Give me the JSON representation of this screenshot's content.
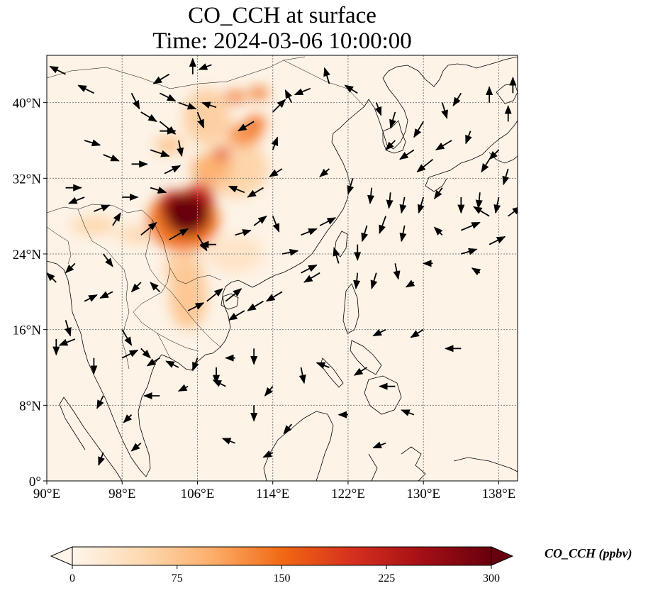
{
  "title": {
    "line1": "CO_CCH at surface",
    "line2": "Time: 2024-03-06 10:00:00"
  },
  "map": {
    "lon_range": [
      90,
      140
    ],
    "lat_range": [
      0,
      45
    ],
    "gridlines": true,
    "lon_ticks": [
      {
        "value": 90,
        "label": "90°E"
      },
      {
        "value": 98,
        "label": "98°E"
      },
      {
        "value": 106,
        "label": "106°E"
      },
      {
        "value": 114,
        "label": "114°E"
      },
      {
        "value": 122,
        "label": "122°E"
      },
      {
        "value": 130,
        "label": "130°E"
      },
      {
        "value": 138,
        "label": "138°E"
      }
    ],
    "lat_ticks": [
      {
        "value": 0,
        "label": "0°"
      },
      {
        "value": 8,
        "label": "8°N"
      },
      {
        "value": 16,
        "label": "16°N"
      },
      {
        "value": 24,
        "label": "24°N"
      },
      {
        "value": 32,
        "label": "32°N"
      },
      {
        "value": 40,
        "label": "40°N"
      }
    ]
  },
  "colorbar": {
    "label": "CO_CCH (ppbv)",
    "min": 0,
    "max": 300,
    "extend": "both",
    "colors": [
      "#fff5eb",
      "#fdd9b1",
      "#fdae6b",
      "#f16913",
      "#d7301f",
      "#a50f15",
      "#67000d"
    ],
    "ticks": [
      {
        "value": 0,
        "label": "0"
      },
      {
        "value": 75,
        "label": "75"
      },
      {
        "value": 150,
        "label": "150"
      },
      {
        "value": 225,
        "label": "225"
      },
      {
        "value": 300,
        "label": "300"
      }
    ]
  },
  "field": {
    "background_color": "#fdf3e7",
    "plumes": [
      {
        "lon": 104.9,
        "lat": 28.2,
        "rlon": 2.4,
        "rlat": 2.2,
        "value": 300
      },
      {
        "lon": 103.5,
        "lat": 29.2,
        "rlon": 1.6,
        "rlat": 1.4,
        "value": 230
      },
      {
        "lon": 106.3,
        "lat": 30.0,
        "rlon": 1.5,
        "rlat": 1.5,
        "value": 210
      },
      {
        "lon": 104.5,
        "lat": 27.5,
        "rlon": 3.8,
        "rlat": 3.2,
        "value": 140
      },
      {
        "lon": 107.5,
        "lat": 33.0,
        "rlon": 2.2,
        "rlat": 1.6,
        "value": 95
      },
      {
        "lon": 108.6,
        "lat": 34.6,
        "rlon": 0.9,
        "rlat": 0.6,
        "value": 190
      },
      {
        "lon": 111.0,
        "lat": 36.6,
        "rlon": 1.8,
        "rlat": 1.2,
        "value": 120
      },
      {
        "lon": 112.2,
        "lat": 37.8,
        "rlon": 1.0,
        "rlat": 0.8,
        "value": 150
      },
      {
        "lon": 110.0,
        "lat": 40.6,
        "rlon": 1.2,
        "rlat": 0.6,
        "value": 140
      },
      {
        "lon": 112.5,
        "lat": 41.0,
        "rlon": 1.0,
        "rlat": 0.6,
        "value": 150
      },
      {
        "lon": 107.0,
        "lat": 38.5,
        "rlon": 2.5,
        "rlat": 3.0,
        "value": 60
      },
      {
        "lon": 110.0,
        "lat": 33.0,
        "rlon": 3.5,
        "rlat": 3.0,
        "value": 55
      },
      {
        "lon": 103.0,
        "lat": 35.5,
        "rlon": 1.5,
        "rlat": 1.0,
        "value": 70
      },
      {
        "lon": 105.0,
        "lat": 19.5,
        "rlon": 2.0,
        "rlat": 3.5,
        "value": 70
      },
      {
        "lon": 104.5,
        "lat": 22.5,
        "rlon": 2.0,
        "rlat": 2.0,
        "value": 60
      },
      {
        "lon": 95.0,
        "lat": 27.0,
        "rlon": 2.5,
        "rlat": 1.0,
        "value": 50
      },
      {
        "lon": 99.5,
        "lat": 26.0,
        "rlon": 2.0,
        "rlat": 1.0,
        "value": 45
      },
      {
        "lon": 110.0,
        "lat": 24.0,
        "rlon": 3.0,
        "rlat": 2.0,
        "value": 30
      }
    ]
  },
  "wind": {
    "vectors": [
      [
        92,
        43,
        -1,
        0.5
      ],
      [
        95,
        41,
        -1,
        0.5
      ],
      [
        99,
        41,
        0.5,
        -1
      ],
      [
        103,
        43,
        -1,
        -0.6
      ],
      [
        105.5,
        43,
        0,
        1
      ],
      [
        107.5,
        44,
        -0.8,
        -0.3
      ],
      [
        102,
        41,
        1,
        -0.5
      ],
      [
        104,
        40,
        1.1,
        -0.4
      ],
      [
        108,
        39.5,
        -0.9,
        0.3
      ],
      [
        100,
        39,
        1,
        -0.6
      ],
      [
        102,
        38,
        1,
        -0.8
      ],
      [
        106,
        39,
        0.4,
        -1
      ],
      [
        94,
        36,
        1,
        -0.3
      ],
      [
        96,
        34.5,
        1,
        -0.4
      ],
      [
        99,
        33.5,
        1,
        0
      ],
      [
        101,
        35,
        1.2,
        -0.4
      ],
      [
        102,
        37,
        1,
        0
      ],
      [
        104,
        36,
        0.2,
        -1
      ],
      [
        92,
        31,
        1,
        0
      ],
      [
        94,
        30,
        -1,
        -0.4
      ],
      [
        95,
        28.5,
        1,
        0.4
      ],
      [
        98,
        30,
        1,
        0
      ],
      [
        101,
        31,
        1,
        -0.3
      ],
      [
        102.5,
        32.5,
        1,
        0.5
      ],
      [
        97,
        27,
        0.5,
        0.8
      ],
      [
        100,
        26,
        1,
        0.8
      ],
      [
        103,
        25.5,
        1.2,
        0.7
      ],
      [
        106,
        26,
        0.6,
        -1
      ],
      [
        108,
        25,
        -1,
        0
      ],
      [
        110,
        26,
        1,
        0.3
      ],
      [
        112,
        27,
        0.8,
        0.6
      ],
      [
        114,
        28,
        0.4,
        -1
      ],
      [
        111,
        30.5,
        -1,
        0.4
      ],
      [
        113,
        31,
        -1,
        -0.6
      ],
      [
        115,
        33,
        -0.8,
        -0.5
      ],
      [
        114,
        35,
        0.3,
        0.8
      ],
      [
        112,
        38,
        -1,
        -0.6
      ],
      [
        114,
        39,
        0.8,
        0.8
      ],
      [
        116,
        40,
        -0.4,
        0.8
      ],
      [
        118,
        41.5,
        -1,
        -0.4
      ],
      [
        120,
        42,
        -0.3,
        1
      ],
      [
        123,
        41,
        -0.8,
        0.5
      ],
      [
        125,
        40,
        0.3,
        -0.8
      ],
      [
        127,
        39,
        -0.3,
        -1
      ],
      [
        130,
        38,
        -0.6,
        -1
      ],
      [
        132,
        40,
        0.3,
        -1
      ],
      [
        134,
        41,
        -0.5,
        -0.8
      ],
      [
        137,
        40,
        0,
        1
      ],
      [
        139.5,
        41,
        0,
        1
      ],
      [
        127,
        36,
        -0.6,
        -0.6
      ],
      [
        129,
        35,
        -0.9,
        -0.6
      ],
      [
        131,
        34,
        -1,
        -0.8
      ],
      [
        133,
        36,
        -1,
        -0.6
      ],
      [
        135,
        37,
        -0.3,
        -0.8
      ],
      [
        137,
        34,
        -0.5,
        -0.8
      ],
      [
        139,
        33,
        -0.3,
        -1
      ],
      [
        120,
        33,
        -0.6,
        -0.5
      ],
      [
        122.5,
        32,
        -0.3,
        -1
      ],
      [
        124.5,
        31,
        -0.1,
        -1
      ],
      [
        126.5,
        30.5,
        -0.1,
        -1
      ],
      [
        128,
        30,
        -0.2,
        -1
      ],
      [
        130,
        30,
        -0.3,
        -1
      ],
      [
        132,
        31,
        -0.5,
        -0.7
      ],
      [
        134,
        30,
        0,
        -1
      ],
      [
        136,
        30.5,
        -0.1,
        -1
      ],
      [
        138,
        30,
        -0.2,
        -1
      ],
      [
        139,
        28,
        0.8,
        0.6
      ],
      [
        137,
        28,
        -1,
        0.6
      ],
      [
        134,
        26.5,
        1.2,
        0.5
      ],
      [
        132,
        26,
        -0.5,
        0.5
      ],
      [
        137,
        25,
        1,
        0.5
      ],
      [
        134,
        24,
        1,
        0.3
      ],
      [
        128,
        27,
        -0.2,
        -1
      ],
      [
        126,
        28,
        -0.4,
        -1.1
      ],
      [
        124,
        27,
        -0.3,
        -1
      ],
      [
        123,
        25,
        0,
        -1
      ],
      [
        123,
        22,
        -0.1,
        -1
      ],
      [
        125,
        22,
        -0.3,
        -1
      ],
      [
        127,
        23,
        0.2,
        -1
      ],
      [
        129,
        21,
        -0.5,
        -0.3
      ],
      [
        131,
        23,
        -0.6,
        0
      ],
      [
        121,
        23,
        -0.3,
        1
      ],
      [
        119,
        22,
        -1,
        -0.6
      ],
      [
        117,
        22,
        1,
        0.5
      ],
      [
        115,
        20,
        -1,
        -0.6
      ],
      [
        113,
        19,
        -1,
        -0.6
      ],
      [
        111,
        18,
        -1,
        -0.6
      ],
      [
        109,
        19,
        1,
        0.8
      ],
      [
        107,
        19,
        1,
        0.8
      ],
      [
        105,
        18,
        1,
        0.5
      ],
      [
        102,
        20,
        -0.6,
        0.6
      ],
      [
        100,
        21,
        -0.6,
        -0.6
      ],
      [
        97,
        20,
        -0.8,
        -0.4
      ],
      [
        94,
        19,
        0.8,
        0.4
      ],
      [
        92,
        17,
        0.3,
        -1
      ],
      [
        91,
        15,
        0,
        -1
      ],
      [
        93,
        15,
        -1,
        -0.4
      ],
      [
        95,
        13,
        0,
        -1
      ],
      [
        98,
        13,
        1,
        0.5
      ],
      [
        100,
        14,
        0.6,
        -0.6
      ],
      [
        102,
        13,
        -0.8,
        -0.5
      ],
      [
        104,
        12,
        -0.8,
        0.4
      ],
      [
        106,
        13,
        -0.3,
        -0.8
      ],
      [
        108,
        12,
        0,
        -1
      ],
      [
        110,
        13,
        -0.6,
        0
      ],
      [
        112,
        14,
        0,
        -1
      ],
      [
        96,
        9,
        -0.4,
        -0.8
      ],
      [
        99,
        7,
        -0.5,
        -0.5
      ],
      [
        102,
        9,
        -1,
        0
      ],
      [
        105,
        10,
        -0.6,
        -0.3
      ],
      [
        109,
        10,
        -0.8,
        0.4
      ],
      [
        112,
        8,
        0,
        -1
      ],
      [
        114,
        10,
        -0.5,
        -0.6
      ],
      [
        117,
        12,
        0.2,
        -1
      ],
      [
        120,
        12,
        -0.8,
        0.3
      ],
      [
        124,
        12,
        -0.8,
        -0.5
      ],
      [
        127,
        10,
        -1,
        0
      ],
      [
        129,
        7,
        -0.8,
        0.3
      ],
      [
        126,
        4,
        -0.8,
        -0.3
      ],
      [
        116,
        6,
        -0.5,
        -0.6
      ],
      [
        122,
        7,
        -0.6,
        0
      ],
      [
        134,
        14,
        -1,
        0
      ],
      [
        130,
        16,
        -0.8,
        -0.5
      ],
      [
        126,
        16,
        -0.8,
        -0.4
      ],
      [
        110,
        4,
        -0.8,
        0.3
      ],
      [
        114,
        3,
        -0.6,
        -0.3
      ],
      [
        96,
        3,
        -0.3,
        -0.8
      ],
      [
        100,
        4,
        -0.6,
        -0.5
      ],
      [
        117,
        26,
        1,
        0.4
      ],
      [
        119,
        27,
        1,
        0.5
      ],
      [
        115,
        24,
        1,
        0.2
      ],
      [
        96,
        24,
        0.6,
        -0.8
      ],
      [
        93,
        23,
        -0.6,
        -0.6
      ],
      [
        91,
        21,
        -0.6,
        0.6
      ],
      [
        139,
        38,
        0,
        1
      ],
      [
        138,
        35,
        -0.6,
        -0.6
      ],
      [
        136,
        22,
        -0.5,
        0.3
      ],
      [
        98,
        16,
        0.6,
        -1.0
      ]
    ]
  }
}
